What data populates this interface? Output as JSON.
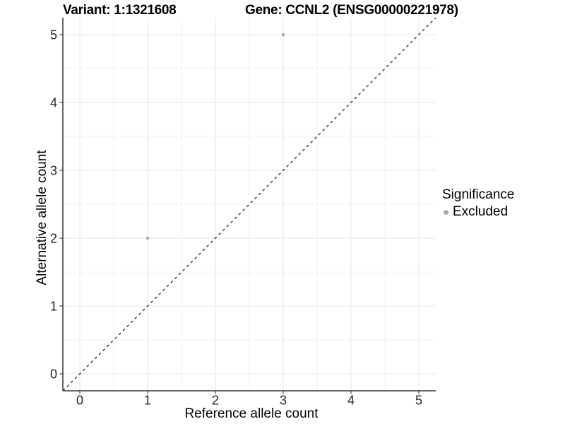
{
  "chart_data": {
    "type": "scatter",
    "title": {
      "variant": "Variant: 1:1321608",
      "gene": "Gene: CCNL2 (ENSG00000221978)"
    },
    "xlabel": "Reference allele count",
    "ylabel": "Alternative allele count",
    "xlim": [
      -0.25,
      5.25
    ],
    "ylim": [
      -0.25,
      5.25
    ],
    "xticks": [
      0,
      1,
      2,
      3,
      4,
      5
    ],
    "yticks": [
      0,
      1,
      2,
      3,
      4,
      5
    ],
    "xminor": [
      0.5,
      1.5,
      2.5,
      3.5,
      4.5
    ],
    "yminor": [
      0.5,
      1.5,
      2.5,
      3.5,
      4.5
    ],
    "grid": "major+minor",
    "abline": {
      "slope": 1,
      "intercept": 0,
      "style": "dashed",
      "color": "#000000"
    },
    "series": [
      {
        "name": "Excluded",
        "marker": "circle",
        "color": "#b2b2b2",
        "points": [
          [
            1,
            2
          ],
          [
            3,
            5
          ]
        ]
      }
    ],
    "legend": {
      "title": "Significance",
      "position": "right",
      "items": [
        {
          "label": "Excluded",
          "color": "#aaaaaa"
        }
      ]
    }
  },
  "colors": {
    "background": "#ffffff",
    "grid_major": "#e6e6e6",
    "grid_minor": "#f2f2f2",
    "axis_line": "#4f4f4f",
    "tick_mark": "#333333",
    "tick_label": "#262626"
  }
}
